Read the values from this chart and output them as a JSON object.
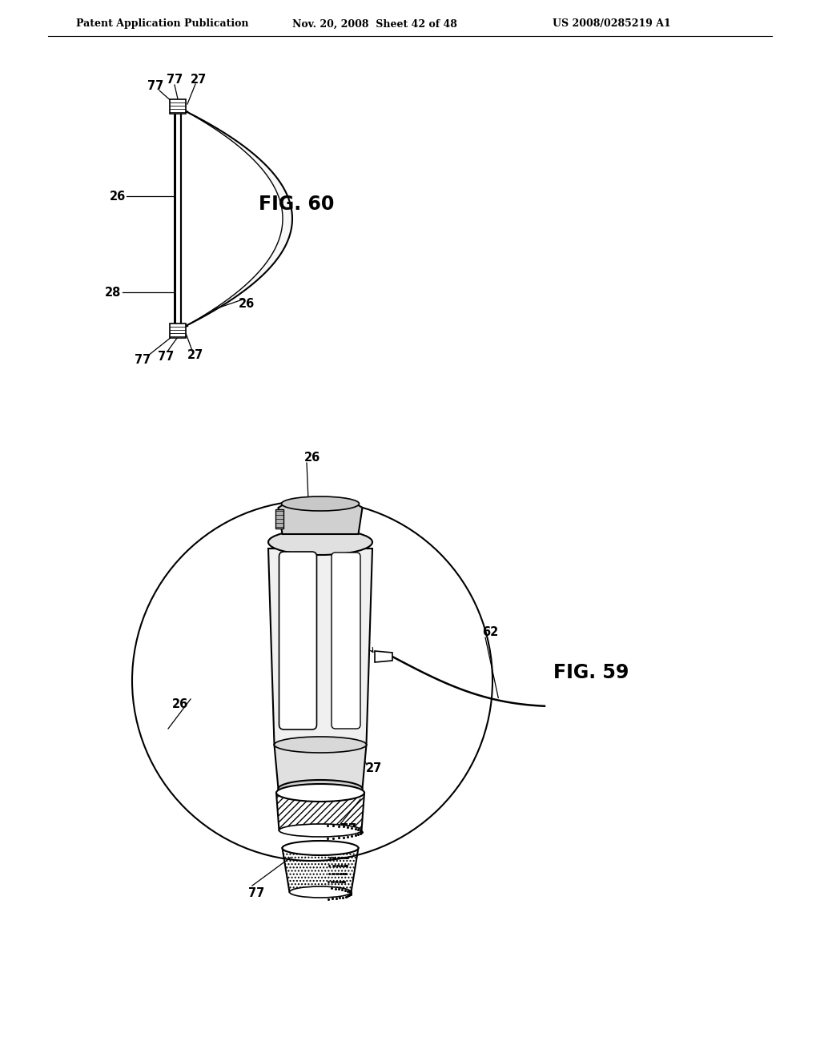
{
  "title_left": "Patent Application Publication",
  "title_mid": "Nov. 20, 2008  Sheet 42 of 48",
  "title_right": "US 2008/0285219 A1",
  "fig60_label": "FIG. 60",
  "fig59_label": "FIG. 59",
  "bg_color": "#ffffff",
  "line_color": "#000000",
  "text_color": "#000000"
}
